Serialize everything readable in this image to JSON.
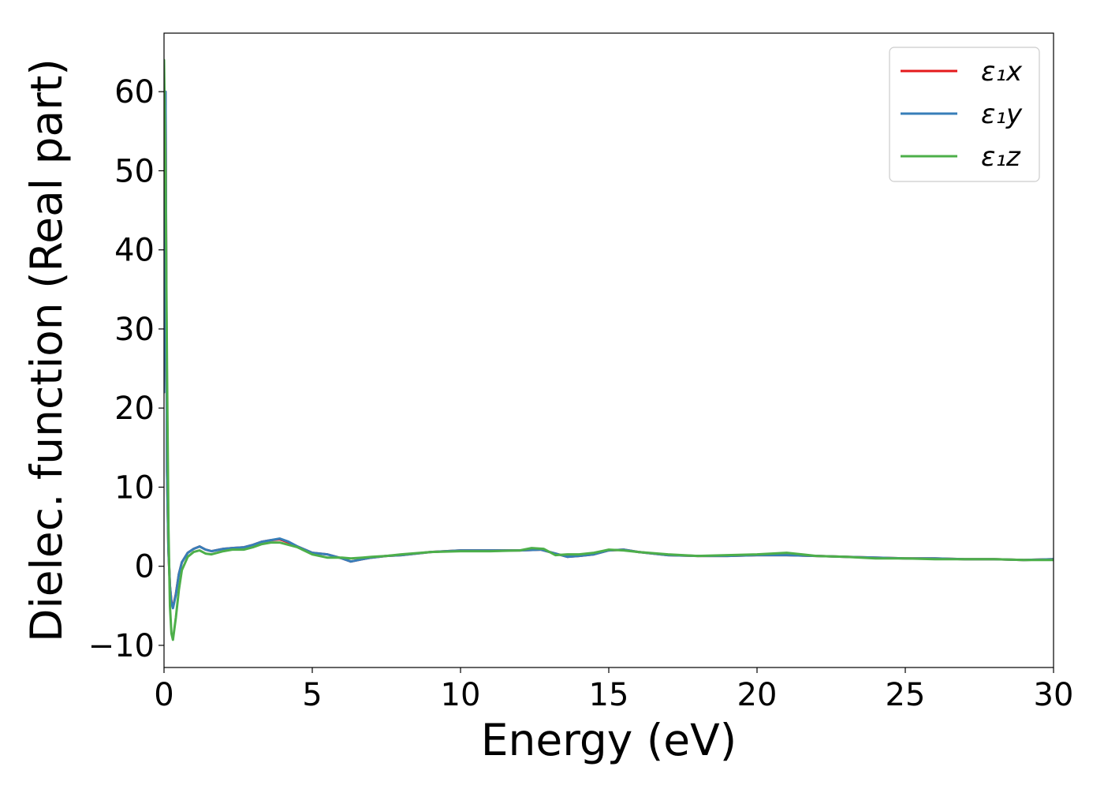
{
  "chart_data": {
    "type": "line",
    "title": "",
    "xlabel": "Energy (eV)",
    "ylabel": "Dielec. function (Real part)",
    "xlim": [
      0,
      30
    ],
    "ylim": [
      -12.8,
      67.4
    ],
    "xticks": [
      0,
      5,
      10,
      15,
      20,
      25,
      30
    ],
    "xtick_labels": [
      "0",
      "5",
      "10",
      "15",
      "20",
      "25",
      "30"
    ],
    "yticks": [
      -10,
      0,
      10,
      20,
      30,
      40,
      50,
      60
    ],
    "ytick_labels": [
      "−10",
      "0",
      "10",
      "20",
      "30",
      "40",
      "50",
      "60"
    ],
    "grid": false,
    "legend_position": "top-right",
    "series": [
      {
        "name": "ε₁x",
        "color": "#e41a1c",
        "x": [
          0.0,
          0.05,
          0.1,
          0.15,
          0.2,
          0.25,
          0.3,
          0.4,
          0.5,
          0.6,
          0.8,
          1.0,
          1.2,
          1.4,
          1.6,
          2.0,
          2.3,
          2.7,
          3.0,
          3.3,
          3.6,
          3.9,
          4.2,
          4.5,
          5.0,
          5.5,
          6.0,
          6.3,
          6.7,
          7.0,
          7.5,
          8.0,
          9.0,
          10.0,
          11.0,
          12.0,
          12.7,
          13.2,
          13.6,
          14.0,
          14.5,
          15.0,
          15.5,
          16.0,
          17.0,
          18.0,
          19.0,
          20.0,
          21.0,
          22.0,
          23.0,
          24.0,
          25.0,
          26.0,
          27.0,
          28.0,
          29.0,
          30.0
        ],
        "values": [
          22.0,
          60.0,
          12.0,
          2.0,
          -2.5,
          -4.5,
          -5.2,
          -3.5,
          -1.0,
          0.5,
          1.7,
          2.2,
          2.5,
          2.1,
          1.9,
          2.2,
          2.3,
          2.4,
          2.7,
          3.1,
          3.3,
          3.4,
          3.0,
          2.5,
          1.7,
          1.5,
          1.0,
          0.6,
          0.9,
          1.1,
          1.3,
          1.4,
          1.8,
          2.0,
          2.0,
          2.0,
          2.1,
          1.6,
          1.2,
          1.3,
          1.5,
          2.0,
          2.1,
          1.8,
          1.4,
          1.3,
          1.3,
          1.4,
          1.4,
          1.3,
          1.2,
          1.1,
          1.0,
          1.0,
          0.9,
          0.9,
          0.8,
          0.9
        ]
      },
      {
        "name": "ε₁y",
        "color": "#377eb8",
        "x": [
          0.0,
          0.05,
          0.1,
          0.15,
          0.2,
          0.25,
          0.3,
          0.4,
          0.5,
          0.6,
          0.8,
          1.0,
          1.2,
          1.4,
          1.6,
          2.0,
          2.3,
          2.7,
          3.0,
          3.3,
          3.6,
          3.9,
          4.2,
          4.5,
          5.0,
          5.5,
          6.0,
          6.3,
          6.7,
          7.0,
          7.5,
          8.0,
          9.0,
          10.0,
          11.0,
          12.0,
          12.7,
          13.2,
          13.6,
          14.0,
          14.5,
          15.0,
          15.5,
          16.0,
          17.0,
          18.0,
          19.0,
          20.0,
          21.0,
          22.0,
          23.0,
          24.0,
          25.0,
          26.0,
          27.0,
          28.0,
          29.0,
          30.0
        ],
        "values": [
          22.0,
          60.0,
          12.0,
          2.0,
          -2.5,
          -4.6,
          -5.3,
          -3.6,
          -1.0,
          0.5,
          1.7,
          2.2,
          2.5,
          2.1,
          1.9,
          2.2,
          2.3,
          2.4,
          2.7,
          3.1,
          3.3,
          3.5,
          3.1,
          2.5,
          1.7,
          1.5,
          1.0,
          0.6,
          0.9,
          1.1,
          1.3,
          1.4,
          1.8,
          2.0,
          2.0,
          2.0,
          2.1,
          1.6,
          1.2,
          1.3,
          1.5,
          2.0,
          2.1,
          1.8,
          1.4,
          1.3,
          1.3,
          1.4,
          1.4,
          1.3,
          1.2,
          1.1,
          1.0,
          1.0,
          0.9,
          0.9,
          0.8,
          0.9
        ]
      },
      {
        "name": "ε₁z",
        "color": "#4daf4a",
        "x": [
          0.0,
          0.05,
          0.1,
          0.15,
          0.2,
          0.25,
          0.3,
          0.4,
          0.5,
          0.6,
          0.8,
          1.0,
          1.2,
          1.4,
          1.6,
          2.0,
          2.3,
          2.7,
          3.0,
          3.3,
          3.6,
          3.9,
          4.2,
          4.5,
          5.0,
          5.5,
          6.0,
          6.3,
          6.7,
          7.0,
          7.5,
          8.0,
          9.0,
          10.0,
          11.0,
          12.0,
          12.4,
          12.8,
          13.2,
          13.6,
          14.0,
          14.5,
          15.0,
          15.5,
          16.0,
          17.0,
          18.0,
          19.0,
          20.0,
          21.0,
          22.0,
          23.0,
          24.0,
          25.0,
          26.0,
          27.0,
          28.0,
          29.0,
          30.0
        ],
        "values": [
          64.0,
          50.0,
          25.0,
          5.0,
          -5.0,
          -8.5,
          -9.3,
          -6.5,
          -3.0,
          -0.5,
          1.2,
          1.8,
          2.0,
          1.6,
          1.5,
          1.9,
          2.1,
          2.1,
          2.4,
          2.8,
          3.0,
          3.0,
          2.7,
          2.4,
          1.5,
          1.1,
          1.1,
          1.0,
          1.1,
          1.2,
          1.3,
          1.5,
          1.8,
          1.9,
          1.9,
          2.0,
          2.3,
          2.2,
          1.4,
          1.5,
          1.5,
          1.7,
          2.1,
          2.0,
          1.8,
          1.5,
          1.3,
          1.4,
          1.5,
          1.7,
          1.3,
          1.2,
          1.0,
          1.0,
          0.9,
          0.9,
          0.9,
          0.8,
          0.8
        ]
      }
    ]
  }
}
